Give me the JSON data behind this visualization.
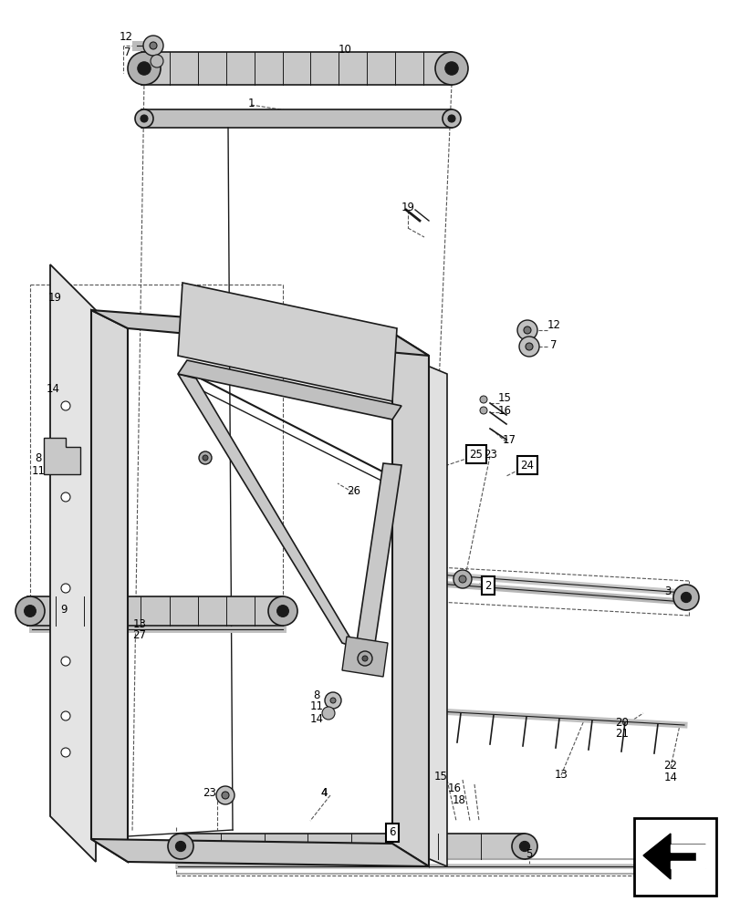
{
  "bg_color": "#ffffff",
  "line_color": "#1a1a1a",
  "dash_color": "#555555",
  "label_color": "#000000",
  "fig_width": 8.12,
  "fig_height": 10.0
}
